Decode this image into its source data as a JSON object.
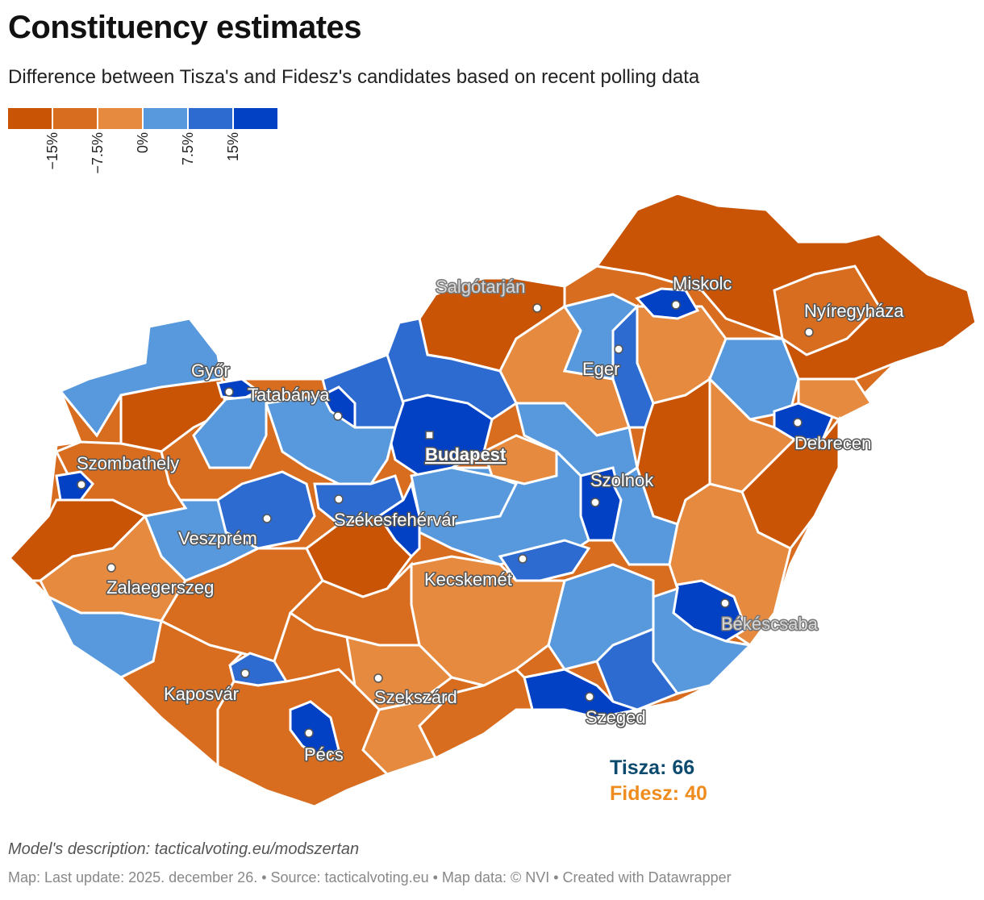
{
  "title": "Constituency estimates",
  "subtitle": "Difference between Tisza's and Fidesz's candidates based on recent polling data",
  "legend": {
    "colors": [
      "#c95406",
      "#d86d1f",
      "#e58a3f",
      "#5899dd",
      "#2e6bd0",
      "#0240c4"
    ],
    "ticks": [
      "−15%",
      "−7.5%",
      "0%",
      "7.5%",
      "15%"
    ]
  },
  "cities": {
    "salgotarjan": "Salgótarján",
    "miskolc": "Miskolc",
    "nyiregyhaza": "Nyíregyháza",
    "eger": "Eger",
    "gyor": "Győr",
    "tatabanya": "Tatabánya",
    "debrecen": "Debrecen",
    "budapest": "Budapest",
    "szombathely": "Szombathely",
    "szolnok": "Szolnok",
    "szekesfehervar": "Székesfehérvár",
    "veszprem": "Veszprém",
    "kecskemet": "Kecskemét",
    "zalaegerszeg": "Zalaegerszeg",
    "bekescsaba": "Békéscsaba",
    "kaposvar": "Kaposvár",
    "szekszard": "Szekszárd",
    "szeged": "Szeged",
    "pecs": "Pécs"
  },
  "results": {
    "tisza": "Tisza: 66",
    "fidesz": "Fidesz: 40"
  },
  "note": "Model's description: tacticalvoting.eu/modszertan",
  "footer": "Map: Last update: 2025. december 26. • Source: tacticalvoting.eu • Map data: © NVI  • Created with Datawrapper"
}
